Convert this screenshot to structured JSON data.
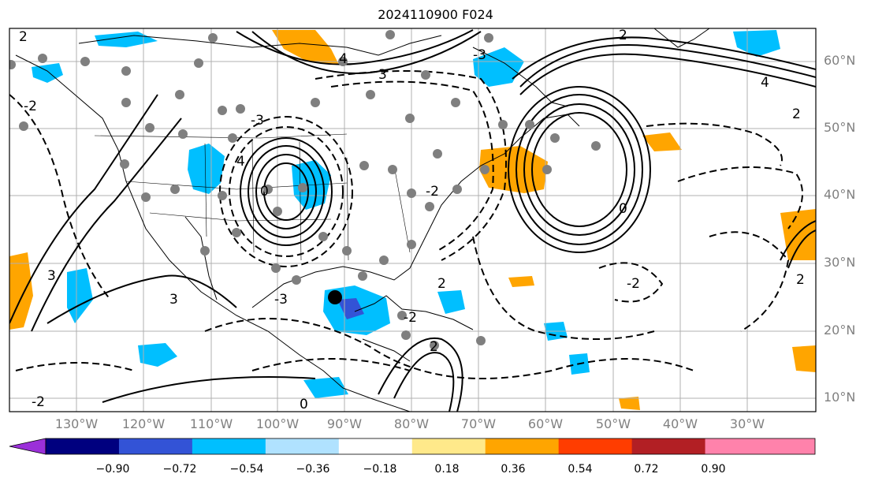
{
  "title": "2024110900 F024",
  "lat_labels": [
    "60°N",
    "50°N",
    "40°N",
    "30°N",
    "20°N",
    "10°N"
  ],
  "lon_labels": [
    "130°W",
    "120°W",
    "110°W",
    "100°W",
    "90°W",
    "80°W",
    "70°W",
    "60°W",
    "50°W",
    "40°W",
    "30°W"
  ],
  "colorbar": {
    "tick_labels": [
      "−0.90",
      "−0.72",
      "−0.54",
      "−0.36",
      "−0.18",
      "0.18",
      "0.36",
      "0.54",
      "0.72",
      "0.90"
    ],
    "colors": [
      "#9b30d9",
      "#00007f",
      "#3353d6",
      "#00bfff",
      "#b0e2ff",
      "#ffffff",
      "#ffe98a",
      "#ffa500",
      "#ff3d00",
      "#b21f24",
      "#ff82ab"
    ]
  },
  "contour_labels": [
    "2",
    "-2",
    "3",
    "4",
    "-3",
    "0",
    "-2",
    "2",
    "-3",
    "2",
    "4",
    "0",
    "-2",
    "2",
    "3",
    "2",
    "0",
    "-2",
    "-3",
    "3",
    "2",
    "4",
    "-2"
  ]
}
